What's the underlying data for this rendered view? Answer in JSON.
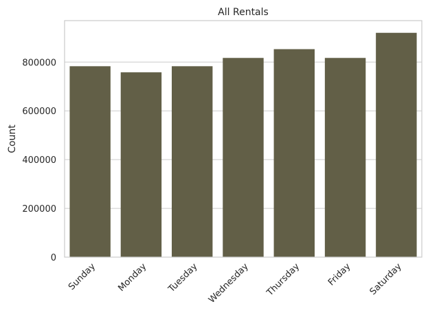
{
  "chart_data": {
    "type": "bar",
    "title": "All Rentals",
    "xlabel": "",
    "ylabel": "Count",
    "categories": [
      "Sunday",
      "Monday",
      "Tuesday",
      "Wednesday",
      "Thursday",
      "Friday",
      "Saturday"
    ],
    "values": [
      783000,
      758000,
      783000,
      817000,
      853000,
      817000,
      920000
    ],
    "ylim": [
      0,
      970000
    ],
    "yticks": [
      0,
      200000,
      400000,
      600000,
      800000
    ],
    "grid": "y",
    "bar_color": "#625f47",
    "grid_color": "#cccccc",
    "frame_color": "#cccccc"
  }
}
